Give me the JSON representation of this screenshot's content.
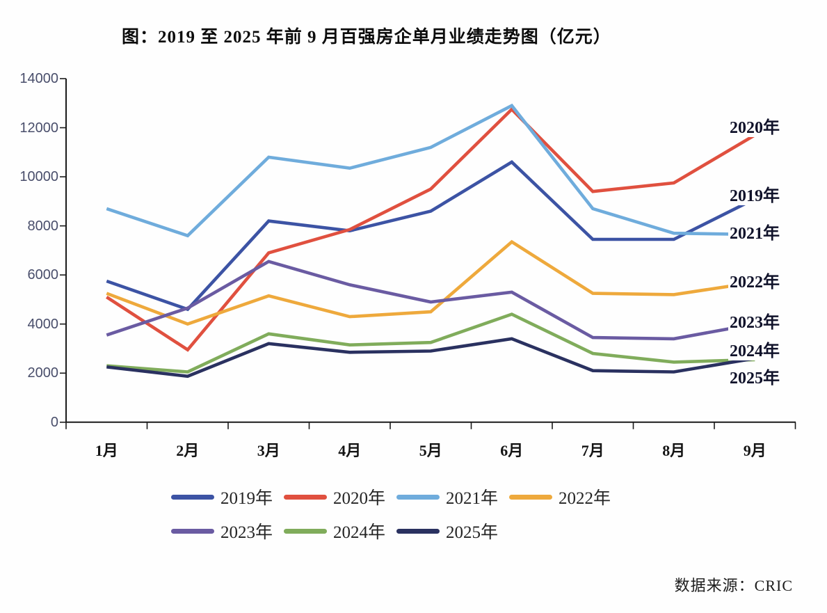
{
  "title": "图：2019 至 2025 年前 9 月百强房企单月业绩走势图（亿元）",
  "source": "数据来源：CRIC",
  "chart_data": {
    "type": "line",
    "title": "图：2019 至 2025 年前 9 月百强房企单月业绩走势图（亿元）",
    "unit": "亿元",
    "categories": [
      "1月",
      "2月",
      "3月",
      "4月",
      "5月",
      "6月",
      "7月",
      "8月",
      "9月"
    ],
    "ylim": [
      0,
      14000
    ],
    "yticks": [
      14000,
      12000,
      10000,
      8000,
      6000,
      4000,
      2000,
      0
    ],
    "grid": false,
    "legend_position": "bottom",
    "series": [
      {
        "name": "2019年",
        "color": "#3C53A4",
        "values": [
          5750,
          4600,
          8200,
          7800,
          8600,
          10600,
          7450,
          7450,
          9100
        ]
      },
      {
        "name": "2020年",
        "color": "#E0503F",
        "values": [
          5100,
          2950,
          6900,
          7850,
          9500,
          12750,
          9400,
          9750,
          11700
        ]
      },
      {
        "name": "2021年",
        "color": "#6FACDC",
        "values": [
          8700,
          7600,
          10800,
          10350,
          11200,
          12900,
          8700,
          7700,
          7650
        ]
      },
      {
        "name": "2022年",
        "color": "#EEA93C",
        "values": [
          5250,
          4000,
          5150,
          4300,
          4500,
          7350,
          5250,
          5200,
          5700
        ]
      },
      {
        "name": "2023年",
        "color": "#6A5BA2",
        "values": [
          3550,
          4650,
          6550,
          5600,
          4900,
          5300,
          3450,
          3400,
          4000
        ]
      },
      {
        "name": "2024年",
        "color": "#80AC5B",
        "values": [
          2300,
          2050,
          3600,
          3150,
          3250,
          4400,
          2800,
          2450,
          2550
        ]
      },
      {
        "name": "2025年",
        "color": "#2A3160",
        "values": [
          2250,
          1870,
          3200,
          2850,
          2900,
          3400,
          2100,
          2050,
          2600
        ]
      }
    ]
  }
}
